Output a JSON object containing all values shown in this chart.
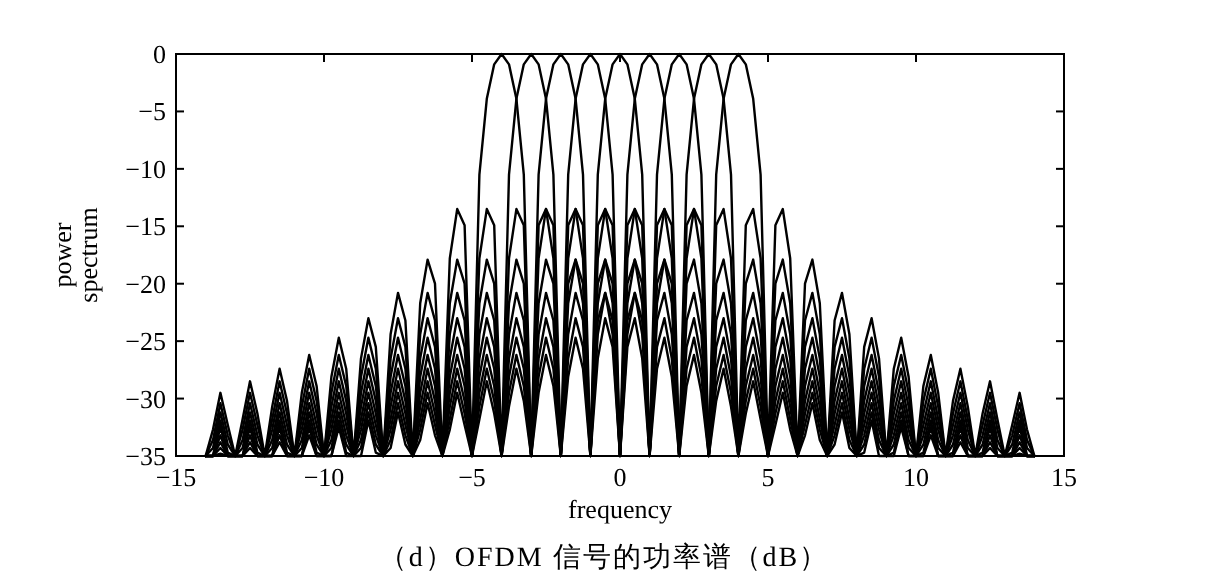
{
  "chart_data": {
    "type": "line",
    "xlabel": "frequency",
    "ylabel": "power spectrum",
    "annotations": [
      "（d）OFDM 信号的功率谱（dB）"
    ],
    "xlim": [
      -15,
      15
    ],
    "ylim": [
      -35,
      0
    ],
    "xticks": [
      -15,
      -10,
      -5,
      0,
      5,
      10,
      15
    ],
    "yticks": [
      -35,
      -30,
      -25,
      -20,
      -15,
      -10,
      -5,
      0
    ],
    "x": [
      -14,
      -13.75,
      -13.5,
      -13.25,
      -13,
      -12.75,
      -12.5,
      -12.25,
      -12,
      -11.75,
      -11.5,
      -11.25,
      -11,
      -10.75,
      -10.5,
      -10.25,
      -10,
      -9.75,
      -9.5,
      -9.25,
      -9,
      -8.75,
      -8.5,
      -8.25,
      -8,
      -7.75,
      -7.5,
      -7.25,
      -7,
      -6.75,
      -6.5,
      -6.25,
      -6,
      -5.75,
      -5.5,
      -5.25,
      -5,
      -4.75,
      -4.5,
      -4.25,
      -4,
      -3.75,
      -3.5,
      -3.25,
      -3,
      -2.75,
      -2.5,
      -2.25,
      -2,
      -1.75,
      -1.5,
      -1.25,
      -1,
      -0.75,
      -0.5,
      -0.25,
      0,
      0.25,
      0.5,
      0.75,
      1,
      1.25,
      1.5,
      1.75,
      2,
      2.25,
      2.5,
      2.75,
      3,
      3.25,
      3.5,
      3.75,
      4,
      4.25,
      4.5,
      4.75,
      5,
      5.25,
      5.5,
      5.75,
      6,
      6.25,
      6.5,
      6.75,
      7,
      7.25,
      7.5,
      7.75,
      8,
      8.25,
      8.5,
      8.75,
      9,
      9.25,
      9.5,
      9.75,
      10,
      10.25,
      10.5,
      10.75,
      11,
      11.25,
      11.5,
      11.75,
      12,
      12.25,
      12.5,
      12.75,
      13,
      13.25,
      13.5,
      13.75,
      14
    ],
    "series": [
      {
        "color": "#000000",
        "values": [
          -35,
          -32.7,
          -29.5,
          -32.3,
          -35,
          -31.8,
          -28.5,
          -31.3,
          -35,
          -30.7,
          -27.4,
          -30.2,
          -35,
          -29.5,
          -26.2,
          -28.9,
          -35,
          -28.1,
          -24.7,
          -27.4,
          -35,
          -26.5,
          -23,
          -25.5,
          -35,
          -24.4,
          -20.8,
          -23.2,
          -35,
          -21.7,
          -17.9,
          -20,
          -35,
          -17.8,
          -13.5,
          -14.9,
          -35,
          -10.5,
          -3.9,
          -0.9,
          0,
          -0.9,
          -3.9,
          -10.5,
          -35,
          -14.9,
          -13.5,
          -17.8,
          -35,
          -20,
          -17.9,
          -21.7,
          -35,
          -23.2,
          -20.8,
          -24.4,
          -35,
          -25.5,
          -23,
          -26.5,
          -35,
          -27.4,
          -24.7,
          -28.1,
          -35,
          -28.9,
          -26.2,
          -29.5,
          -35,
          -30.2,
          -27.4,
          -30.7,
          -35,
          -31.3,
          -28.5,
          -31.8,
          -35,
          -32.3,
          -29.5,
          -32.7,
          -35,
          -33.2,
          -30.4,
          -33.6,
          -35,
          -34,
          -31.2,
          -34.3,
          -35,
          -34.7,
          -31.9,
          -35,
          -35,
          -35,
          -32.5,
          -35,
          -35,
          -35,
          -33.2,
          -35,
          -35,
          -35,
          -33.8,
          -35,
          -35,
          -35,
          -34.3,
          -35,
          -35,
          -35,
          -34.8,
          -35,
          -35
        ]
      },
      {
        "color": "#000000",
        "values": [
          -35,
          -33.6,
          -30.4,
          -33.2,
          -35,
          -32.7,
          -29.5,
          -32.3,
          -35,
          -31.8,
          -28.5,
          -31.3,
          -35,
          -30.7,
          -27.4,
          -30.2,
          -35,
          -29.5,
          -26.2,
          -28.9,
          -35,
          -28.1,
          -24.7,
          -27.4,
          -35,
          -26.5,
          -23,
          -25.5,
          -35,
          -24.4,
          -20.8,
          -23.2,
          -35,
          -21.7,
          -17.9,
          -20,
          -35,
          -17.8,
          -13.5,
          -14.9,
          -35,
          -10.5,
          -3.9,
          -0.9,
          0,
          -0.9,
          -3.9,
          -10.5,
          -35,
          -14.9,
          -13.5,
          -17.8,
          -35,
          -20,
          -17.9,
          -21.7,
          -35,
          -23.2,
          -20.8,
          -24.4,
          -35,
          -25.5,
          -23,
          -26.5,
          -35,
          -27.4,
          -24.7,
          -28.1,
          -35,
          -28.9,
          -26.2,
          -29.5,
          -35,
          -30.2,
          -27.4,
          -30.7,
          -35,
          -31.3,
          -28.5,
          -31.8,
          -35,
          -32.3,
          -29.5,
          -32.7,
          -35,
          -33.2,
          -30.4,
          -33.6,
          -35,
          -34,
          -31.2,
          -34.3,
          -35,
          -34.7,
          -31.9,
          -35,
          -35,
          -35,
          -32.5,
          -35,
          -35,
          -35,
          -33.2,
          -35,
          -35,
          -35,
          -33.8,
          -35,
          -35,
          -35,
          -34.3,
          -35,
          -35
        ]
      },
      {
        "color": "#000000",
        "values": [
          -35,
          -34.3,
          -31.2,
          -34,
          -35,
          -33.6,
          -30.4,
          -33.2,
          -35,
          -32.7,
          -29.5,
          -32.3,
          -35,
          -31.8,
          -28.5,
          -31.3,
          -35,
          -30.7,
          -27.4,
          -30.2,
          -35,
          -29.5,
          -26.2,
          -28.9,
          -35,
          -28.1,
          -24.7,
          -27.4,
          -35,
          -26.5,
          -23,
          -25.5,
          -35,
          -24.4,
          -20.8,
          -23.2,
          -35,
          -21.7,
          -17.9,
          -20,
          -35,
          -17.8,
          -13.5,
          -14.9,
          -35,
          -10.5,
          -3.9,
          -0.9,
          0,
          -0.9,
          -3.9,
          -10.5,
          -35,
          -14.9,
          -13.5,
          -17.8,
          -35,
          -20,
          -17.9,
          -21.7,
          -35,
          -23.2,
          -20.8,
          -24.4,
          -35,
          -25.5,
          -23,
          -26.5,
          -35,
          -27.4,
          -24.7,
          -28.1,
          -35,
          -28.9,
          -26.2,
          -29.5,
          -35,
          -30.2,
          -27.4,
          -30.7,
          -35,
          -31.3,
          -28.5,
          -31.8,
          -35,
          -32.3,
          -29.5,
          -32.7,
          -35,
          -33.2,
          -30.4,
          -33.6,
          -35,
          -34,
          -31.2,
          -34.3,
          -35,
          -34.7,
          -31.9,
          -35,
          -35,
          -35,
          -32.5,
          -35,
          -35,
          -35,
          -33.2,
          -35,
          -35,
          -35,
          -33.8,
          -35,
          -35
        ]
      },
      {
        "color": "#000000",
        "values": [
          -35,
          -35,
          -31.9,
          -34.7,
          -35,
          -34.3,
          -31.2,
          -34,
          -35,
          -33.6,
          -30.4,
          -33.2,
          -35,
          -32.7,
          -29.5,
          -32.3,
          -35,
          -31.8,
          -28.5,
          -31.3,
          -35,
          -30.7,
          -27.4,
          -30.2,
          -35,
          -29.5,
          -26.2,
          -28.9,
          -35,
          -28.1,
          -24.7,
          -27.4,
          -35,
          -26.5,
          -23,
          -25.5,
          -35,
          -24.4,
          -20.8,
          -23.2,
          -35,
          -21.7,
          -17.9,
          -20,
          -35,
          -17.8,
          -13.5,
          -14.9,
          -35,
          -10.5,
          -3.9,
          -0.9,
          0,
          -0.9,
          -3.9,
          -10.5,
          -35,
          -14.9,
          -13.5,
          -17.8,
          -35,
          -20,
          -17.9,
          -21.7,
          -35,
          -23.2,
          -20.8,
          -24.4,
          -35,
          -25.5,
          -23,
          -26.5,
          -35,
          -27.4,
          -24.7,
          -28.1,
          -35,
          -28.9,
          -26.2,
          -29.5,
          -35,
          -30.2,
          -27.4,
          -30.7,
          -35,
          -31.3,
          -28.5,
          -31.8,
          -35,
          -32.3,
          -29.5,
          -32.7,
          -35,
          -33.2,
          -30.4,
          -33.6,
          -35,
          -34,
          -31.2,
          -34.3,
          -35,
          -34.7,
          -31.9,
          -35,
          -35,
          -35,
          -32.5,
          -35,
          -35,
          -35,
          -33.2,
          -35,
          -35
        ]
      },
      {
        "color": "#000000",
        "values": [
          -35,
          -35,
          -32.5,
          -35,
          -35,
          -35,
          -31.9,
          -34.7,
          -35,
          -34.3,
          -31.2,
          -34,
          -35,
          -33.6,
          -30.4,
          -33.2,
          -35,
          -32.7,
          -29.5,
          -32.3,
          -35,
          -31.8,
          -28.5,
          -31.3,
          -35,
          -30.7,
          -27.4,
          -30.2,
          -35,
          -29.5,
          -26.2,
          -28.9,
          -35,
          -28.1,
          -24.7,
          -27.4,
          -35,
          -26.5,
          -23,
          -25.5,
          -35,
          -24.4,
          -20.8,
          -23.2,
          -35,
          -21.7,
          -17.9,
          -20,
          -35,
          -17.8,
          -13.5,
          -14.9,
          -35,
          -10.5,
          -3.9,
          -0.9,
          0,
          -0.9,
          -3.9,
          -10.5,
          -35,
          -14.9,
          -13.5,
          -17.8,
          -35,
          -20,
          -17.9,
          -21.7,
          -35,
          -23.2,
          -20.8,
          -24.4,
          -35,
          -25.5,
          -23,
          -26.5,
          -35,
          -27.4,
          -24.7,
          -28.1,
          -35,
          -28.9,
          -26.2,
          -29.5,
          -35,
          -30.2,
          -27.4,
          -30.7,
          -35,
          -31.3,
          -28.5,
          -31.8,
          -35,
          -32.3,
          -29.5,
          -32.7,
          -35,
          -33.2,
          -30.4,
          -33.6,
          -35,
          -34,
          -31.2,
          -34.3,
          -35,
          -34.7,
          -31.9,
          -35,
          -35,
          -35,
          -32.5,
          -35,
          -35
        ]
      },
      {
        "color": "#000000",
        "values": [
          -35,
          -35,
          -33.2,
          -35,
          -35,
          -35,
          -32.5,
          -35,
          -35,
          -35,
          -31.9,
          -34.7,
          -35,
          -34.3,
          -31.2,
          -34,
          -35,
          -33.6,
          -30.4,
          -33.2,
          -35,
          -32.7,
          -29.5,
          -32.3,
          -35,
          -31.8,
          -28.5,
          -31.3,
          -35,
          -30.7,
          -27.4,
          -30.2,
          -35,
          -29.5,
          -26.2,
          -28.9,
          -35,
          -28.1,
          -24.7,
          -27.4,
          -35,
          -26.5,
          -23,
          -25.5,
          -35,
          -24.4,
          -20.8,
          -23.2,
          -35,
          -21.7,
          -17.9,
          -20,
          -35,
          -17.8,
          -13.5,
          -14.9,
          -35,
          -10.5,
          -3.9,
          -0.9,
          0,
          -0.9,
          -3.9,
          -10.5,
          -35,
          -14.9,
          -13.5,
          -17.8,
          -35,
          -20,
          -17.9,
          -21.7,
          -35,
          -23.2,
          -20.8,
          -24.4,
          -35,
          -25.5,
          -23,
          -26.5,
          -35,
          -27.4,
          -24.7,
          -28.1,
          -35,
          -28.9,
          -26.2,
          -29.5,
          -35,
          -30.2,
          -27.4,
          -30.7,
          -35,
          -31.3,
          -28.5,
          -31.8,
          -35,
          -32.3,
          -29.5,
          -32.7,
          -35,
          -33.2,
          -30.4,
          -33.6,
          -35,
          -34,
          -31.2,
          -34.3,
          -35,
          -34.7,
          -31.9,
          -35,
          -35
        ]
      },
      {
        "color": "#000000",
        "values": [
          -35,
          -35,
          -33.8,
          -35,
          -35,
          -35,
          -33.2,
          -35,
          -35,
          -35,
          -32.5,
          -35,
          -35,
          -35,
          -31.9,
          -34.7,
          -35,
          -34.3,
          -31.2,
          -34,
          -35,
          -33.6,
          -30.4,
          -33.2,
          -35,
          -32.7,
          -29.5,
          -32.3,
          -35,
          -31.8,
          -28.5,
          -31.3,
          -35,
          -30.7,
          -27.4,
          -30.2,
          -35,
          -29.5,
          -26.2,
          -28.9,
          -35,
          -28.1,
          -24.7,
          -27.4,
          -35,
          -26.5,
          -23,
          -25.5,
          -35,
          -24.4,
          -20.8,
          -23.2,
          -35,
          -21.7,
          -17.9,
          -20,
          -35,
          -17.8,
          -13.5,
          -14.9,
          -35,
          -10.5,
          -3.9,
          -0.9,
          0,
          -0.9,
          -3.9,
          -10.5,
          -35,
          -14.9,
          -13.5,
          -17.8,
          -35,
          -20,
          -17.9,
          -21.7,
          -35,
          -23.2,
          -20.8,
          -24.4,
          -35,
          -25.5,
          -23,
          -26.5,
          -35,
          -27.4,
          -24.7,
          -28.1,
          -35,
          -28.9,
          -26.2,
          -29.5,
          -35,
          -30.2,
          -27.4,
          -30.7,
          -35,
          -31.3,
          -28.5,
          -31.8,
          -35,
          -32.3,
          -29.5,
          -32.7,
          -35,
          -33.2,
          -30.4,
          -33.6,
          -35,
          -34,
          -31.2,
          -34.3,
          -35
        ]
      },
      {
        "color": "#000000",
        "values": [
          -35,
          -35,
          -34.3,
          -35,
          -35,
          -35,
          -33.8,
          -35,
          -35,
          -35,
          -33.2,
          -35,
          -35,
          -35,
          -32.5,
          -35,
          -35,
          -35,
          -31.9,
          -34.7,
          -35,
          -34.3,
          -31.2,
          -34,
          -35,
          -33.6,
          -30.4,
          -33.2,
          -35,
          -32.7,
          -29.5,
          -32.3,
          -35,
          -31.8,
          -28.5,
          -31.3,
          -35,
          -30.7,
          -27.4,
          -30.2,
          -35,
          -29.5,
          -26.2,
          -28.9,
          -35,
          -28.1,
          -24.7,
          -27.4,
          -35,
          -26.5,
          -23,
          -25.5,
          -35,
          -24.4,
          -20.8,
          -23.2,
          -35,
          -21.7,
          -17.9,
          -20,
          -35,
          -17.8,
          -13.5,
          -14.9,
          -35,
          -10.5,
          -3.9,
          -0.9,
          0,
          -0.9,
          -3.9,
          -10.5,
          -35,
          -14.9,
          -13.5,
          -17.8,
          -35,
          -20,
          -17.9,
          -21.7,
          -35,
          -23.2,
          -20.8,
          -24.4,
          -35,
          -25.5,
          -23,
          -26.5,
          -35,
          -27.4,
          -24.7,
          -28.1,
          -35,
          -28.9,
          -26.2,
          -29.5,
          -35,
          -30.2,
          -27.4,
          -30.7,
          -35,
          -31.3,
          -28.5,
          -31.8,
          -35,
          -32.3,
          -29.5,
          -32.7,
          -35,
          -33.2,
          -30.4,
          -33.6,
          -35
        ]
      },
      {
        "color": "#000000",
        "values": [
          -35,
          -35,
          -34.8,
          -35,
          -35,
          -35,
          -34.3,
          -35,
          -35,
          -35,
          -33.8,
          -35,
          -35,
          -35,
          -33.2,
          -35,
          -35,
          -35,
          -32.5,
          -35,
          -35,
          -35,
          -31.9,
          -34.7,
          -35,
          -34.3,
          -31.2,
          -34,
          -35,
          -33.6,
          -30.4,
          -33.2,
          -35,
          -32.7,
          -29.5,
          -32.3,
          -35,
          -31.8,
          -28.5,
          -31.3,
          -35,
          -30.7,
          -27.4,
          -30.2,
          -35,
          -29.5,
          -26.2,
          -28.9,
          -35,
          -28.1,
          -24.7,
          -27.4,
          -35,
          -26.5,
          -23,
          -25.5,
          -35,
          -24.4,
          -20.8,
          -23.2,
          -35,
          -21.7,
          -17.9,
          -20,
          -35,
          -17.8,
          -13.5,
          -14.9,
          -35,
          -10.5,
          -3.9,
          -0.9,
          0,
          -0.9,
          -3.9,
          -10.5,
          -35,
          -14.9,
          -13.5,
          -17.8,
          -35,
          -20,
          -17.9,
          -21.7,
          -35,
          -23.2,
          -20.8,
          -24.4,
          -35,
          -25.5,
          -23,
          -26.5,
          -35,
          -27.4,
          -24.7,
          -28.1,
          -35,
          -28.9,
          -26.2,
          -29.5,
          -35,
          -30.2,
          -27.4,
          -30.7,
          -35,
          -31.3,
          -28.5,
          -31.8,
          -35,
          -32.3,
          -29.5,
          -32.7,
          -35
        ]
      }
    ]
  }
}
